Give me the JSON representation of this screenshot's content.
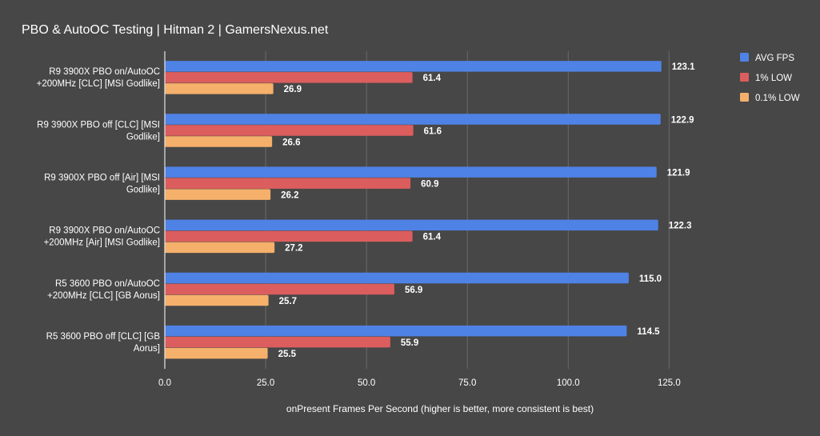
{
  "chart_data": {
    "type": "bar",
    "orientation": "horizontal",
    "title": "PBO & AutoOC Testing | Hitman 2 | GamersNexus.net",
    "xlabel": "onPresent Frames Per Second (higher is better, more consistent is best)",
    "ylabel": "",
    "xlim": [
      0,
      140
    ],
    "xticks": [
      "0.0",
      "25.0",
      "50.0",
      "75.0",
      "100.0",
      "125.0"
    ],
    "grid": true,
    "legend_position": "top-right",
    "categories": [
      [
        "R9 3900X PBO on/AutoOC",
        "+200MHz [CLC] [MSI Godlike]"
      ],
      [
        "R9 3900X PBO off [CLC] [MSI",
        "Godlike]"
      ],
      [
        "R9 3900X PBO off [Air] [MSI",
        "Godlike]"
      ],
      [
        "R9 3900X PBO on/AutoOC",
        "+200MHz [Air] [MSI Godlike]"
      ],
      [
        "R5 3600 PBO on/AutoOC",
        "+200MHz [CLC] [GB Aorus]"
      ],
      [
        "R5 3600 PBO off [CLC] [GB",
        "Aorus]"
      ]
    ],
    "series": [
      {
        "name": "AVG FPS",
        "color": "#4f82e5",
        "values": [
          123.1,
          122.9,
          121.9,
          122.3,
          115.0,
          114.5
        ]
      },
      {
        "name": "1% LOW",
        "color": "#dc5d5d",
        "values": [
          61.4,
          61.6,
          60.9,
          61.4,
          56.9,
          55.9
        ]
      },
      {
        "name": "0.1% LOW",
        "color": "#f5b06b",
        "values": [
          26.9,
          26.6,
          26.2,
          27.2,
          25.7,
          25.5
        ]
      }
    ]
  }
}
